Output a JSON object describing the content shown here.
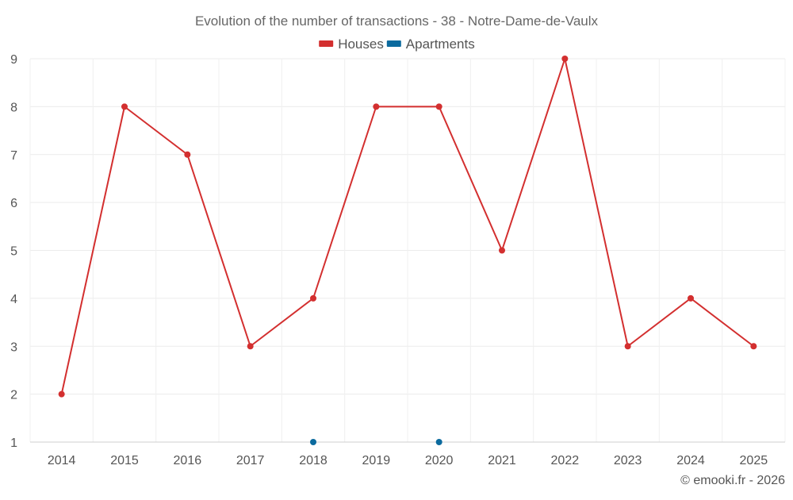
{
  "chart_data": {
    "type": "line",
    "title": "Evolution of the number of transactions - 38 - Notre-Dame-de-Vaulx",
    "xlabel": "",
    "ylabel": "",
    "categories": [
      "2014",
      "2015",
      "2016",
      "2017",
      "2018",
      "2019",
      "2020",
      "2021",
      "2022",
      "2023",
      "2024",
      "2025"
    ],
    "ylim": [
      1,
      9
    ],
    "yticks": [
      "1",
      "2",
      "3",
      "4",
      "5",
      "6",
      "7",
      "8",
      "9"
    ],
    "grid": true,
    "legend_position": "top-center",
    "series": [
      {
        "name": "Houses",
        "color": "#d32f2f",
        "values": [
          2,
          8,
          7,
          3,
          4,
          8,
          8,
          5,
          9,
          3,
          4,
          3
        ]
      },
      {
        "name": "Apartments",
        "color": "#0b6a9e",
        "values": [
          null,
          null,
          null,
          null,
          1,
          null,
          1,
          null,
          null,
          null,
          null,
          null
        ]
      }
    ],
    "credit": "© emooki.fr - 2026"
  }
}
